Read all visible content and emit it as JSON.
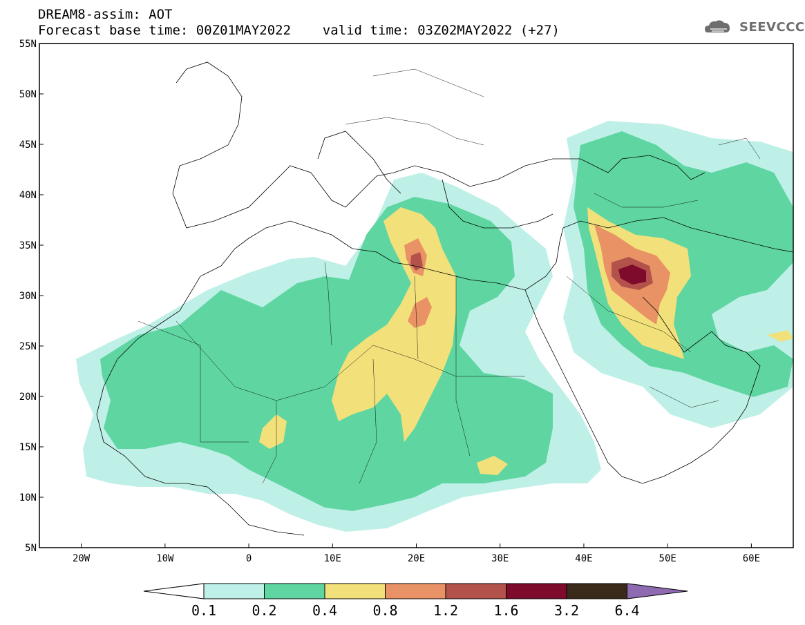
{
  "header": {
    "line1": "DREAM8-assim: AOT",
    "line2": "Forecast base time: 00Z01MAY2022    valid time: 03Z02MAY2022 (+27)"
  },
  "logo": {
    "text": "SEEVCCC",
    "icon": "cloud-icon"
  },
  "map": {
    "lon_range": [
      -25,
      65
    ],
    "lat_range": [
      5,
      55
    ],
    "lat_labels": [
      "55N",
      "50N",
      "45N",
      "40N",
      "35N",
      "30N",
      "25N",
      "20N",
      "15N",
      "10N",
      "5N"
    ],
    "lon_labels": [
      "20W",
      "10W",
      "0",
      "10E",
      "20E",
      "30E",
      "40E",
      "50E",
      "60E"
    ]
  },
  "colorbar": {
    "labels": [
      "0.1",
      "0.2",
      "0.4",
      "0.8",
      "1.2",
      "1.6",
      "3.2",
      "6.4"
    ],
    "colors": [
      "#bff0e8",
      "#5fd6a2",
      "#f2e17a",
      "#e99265",
      "#b2524a",
      "#7e0a2c",
      "#3b2a1a",
      "#8e6bb0"
    ]
  }
}
